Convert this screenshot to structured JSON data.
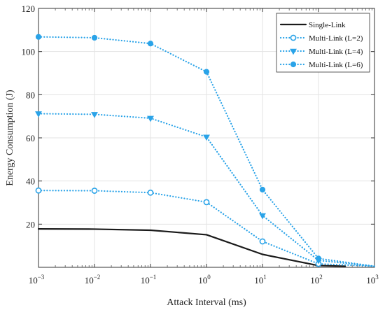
{
  "chart_data": {
    "type": "line",
    "xscale": "log",
    "xlabel": "Attack Interval (ms)",
    "ylabel": "Energy Consumption (J)",
    "xlim": [
      0.001,
      1000
    ],
    "ylim": [
      0,
      120
    ],
    "x_ticks": [
      {
        "base": "10",
        "exp": "−3"
      },
      {
        "base": "10",
        "exp": "−2"
      },
      {
        "base": "10",
        "exp": "−1"
      },
      {
        "base": "10",
        "exp": "0"
      },
      {
        "base": "10",
        "exp": "1"
      },
      {
        "base": "10",
        "exp": "2"
      },
      {
        "base": "10",
        "exp": "3"
      }
    ],
    "y_ticks": [
      "20",
      "40",
      "60",
      "80",
      "100",
      "120"
    ],
    "y_tick_values": [
      20,
      40,
      60,
      80,
      100,
      120
    ],
    "grid": true,
    "legend_position": "top-right",
    "series": [
      {
        "name": "Single-Link",
        "color": "#1a1a1a",
        "style": "solid",
        "marker": "none",
        "x": [
          0.001,
          0.01,
          0.1,
          1,
          10,
          100,
          300
        ],
        "y": [
          17.8,
          17.7,
          17.2,
          15.1,
          6.0,
          0.8,
          0.5
        ]
      },
      {
        "name": "Multi-Link (L=2)",
        "color": "#2aa3e8",
        "style": "dotted",
        "marker": "circle-open",
        "x": [
          0.001,
          0.01,
          0.1,
          1,
          10,
          100,
          1000
        ],
        "y": [
          35.6,
          35.5,
          34.6,
          30.2,
          12.0,
          1.6,
          0.5
        ]
      },
      {
        "name": "Multi-Link (L=4)",
        "color": "#2aa3e8",
        "style": "dotted",
        "marker": "triangle-down",
        "x": [
          0.001,
          0.01,
          0.1,
          1,
          10,
          100,
          1000
        ],
        "y": [
          71.2,
          70.9,
          69.1,
          60.4,
          24.0,
          3.2,
          0.5
        ]
      },
      {
        "name": "Multi-Link (L=6)",
        "color": "#2aa3e8",
        "style": "dotted",
        "marker": "circle-filled",
        "x": [
          0.001,
          0.01,
          0.1,
          1,
          10,
          100,
          1000
        ],
        "y": [
          106.8,
          106.4,
          103.7,
          90.6,
          36.0,
          4.1,
          0.5
        ]
      }
    ]
  }
}
